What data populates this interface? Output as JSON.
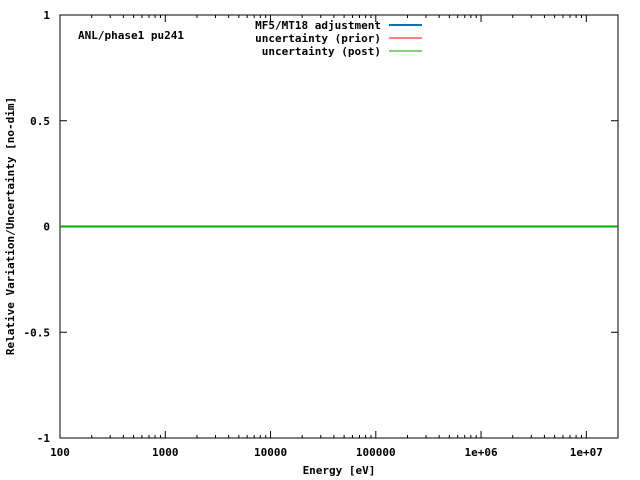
{
  "chart_data": {
    "type": "line",
    "annotation": "ANL/phase1 pu241",
    "xlabel": "Energy [eV]",
    "ylabel": "Relative Variation/Uncertainty [no-dim]",
    "x_scale": "log",
    "xlim": [
      100,
      20000000
    ],
    "ylim": [
      -1,
      1
    ],
    "x_ticks": [
      {
        "value": 100,
        "label": "100"
      },
      {
        "value": 1000,
        "label": "1000"
      },
      {
        "value": 10000,
        "label": "10000"
      },
      {
        "value": 100000,
        "label": "100000"
      },
      {
        "value": 1000000,
        "label": "1e+06"
      },
      {
        "value": 10000000,
        "label": "1e+07"
      }
    ],
    "y_ticks": [
      {
        "value": 1,
        "label": "1"
      },
      {
        "value": 0.5,
        "label": "0.5"
      },
      {
        "value": 0,
        "label": "0"
      },
      {
        "value": -0.5,
        "label": "-0.5"
      },
      {
        "value": -1,
        "label": "-1"
      }
    ],
    "grid": false,
    "legend_position": "top-center",
    "series": [
      {
        "name": "MF5/MT18 adjustment",
        "color": "#0072bd",
        "x": [
          100,
          20000000
        ],
        "y": [
          0,
          0
        ]
      },
      {
        "name": "uncertainty (prior)",
        "color": "#ff0000",
        "x": [
          100,
          20000000
        ],
        "y": [
          0,
          0
        ]
      },
      {
        "name": "uncertainty (post)",
        "color": "#00aa00",
        "x": [
          100,
          20000000
        ],
        "y": [
          0,
          0
        ]
      }
    ]
  }
}
